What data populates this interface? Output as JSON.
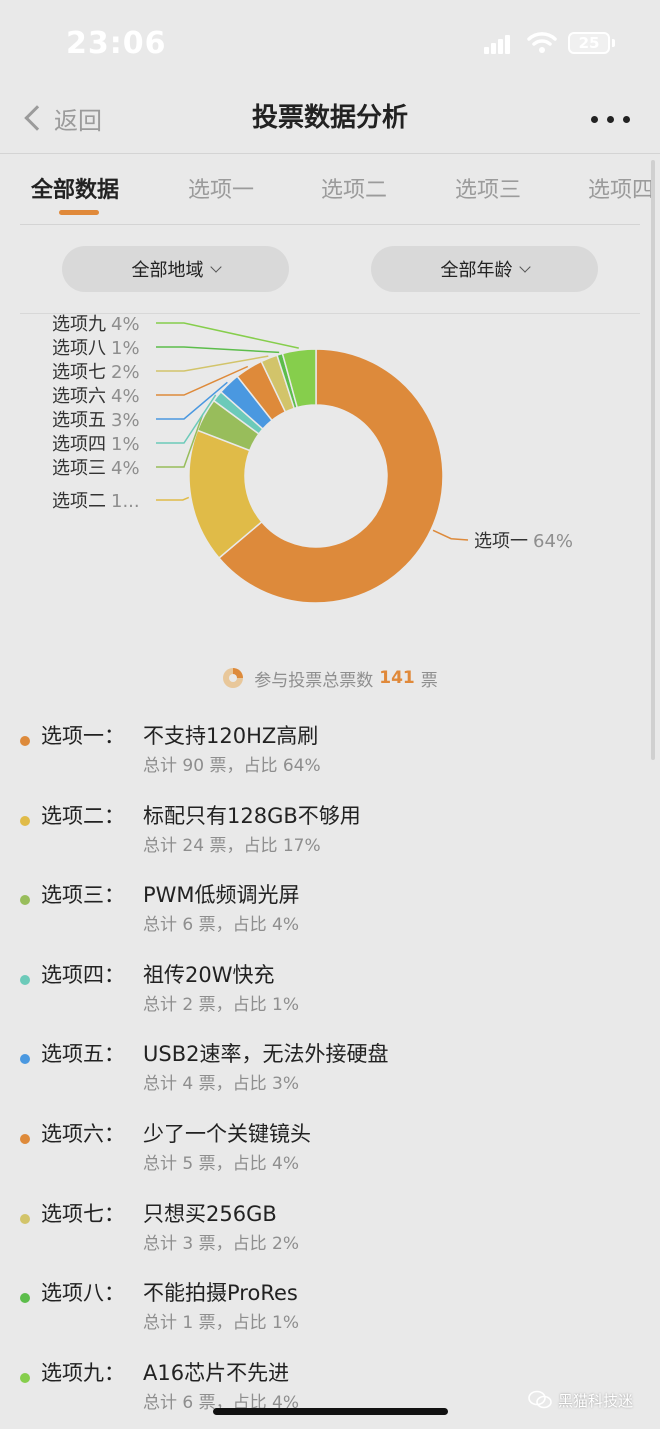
{
  "status_bar": {
    "time": "23:06",
    "battery": "25"
  },
  "nav": {
    "back_label": "返回",
    "title": "投票数据分析"
  },
  "tabs": [
    {
      "label": "全部数据",
      "active": true
    },
    {
      "label": "选项一",
      "active": false
    },
    {
      "label": "选项二",
      "active": false
    },
    {
      "label": "选项三",
      "active": false
    },
    {
      "label": "选项四",
      "active": false
    }
  ],
  "filters": {
    "region": "全部地域",
    "age": "全部年龄"
  },
  "chart_data": {
    "type": "pie",
    "donut": true,
    "categories": [
      "选项一",
      "选项二",
      "选项三",
      "选项四",
      "选项五",
      "选项六",
      "选项七",
      "选项八",
      "选项九"
    ],
    "values": [
      90,
      24,
      6,
      2,
      4,
      5,
      3,
      1,
      6
    ],
    "labels": [
      "选项一 64%",
      "选项二 1...",
      "选项三 4%",
      "选项四 1%",
      "选项五 3%",
      "选项六 4%",
      "选项七 2%",
      "选项八 1%",
      "选项九 4%"
    ],
    "colors": [
      "#dd8a3b",
      "#e0bb48",
      "#98bd5b",
      "#6ccab9",
      "#4a98e0",
      "#de8a3a",
      "#d2c46a",
      "#5cbd4b",
      "#86ce4c"
    ]
  },
  "total": {
    "prefix": "参与投票总票数",
    "count": "141",
    "suffix": "票"
  },
  "options": [
    {
      "label": "选项一：",
      "text": "不支持120HZ高刷",
      "stats": "总计 90 票，占比 64%",
      "color": "#dd8a3b"
    },
    {
      "label": "选项二：",
      "text": "标配只有128GB不够用",
      "stats": "总计 24 票，占比 17%",
      "color": "#e0bb48"
    },
    {
      "label": "选项三：",
      "text": "PWM低频调光屏",
      "stats": "总计 6 票，占比 4%",
      "color": "#98bd5b"
    },
    {
      "label": "选项四：",
      "text": "祖传20W快充",
      "stats": "总计 2 票，占比 1%",
      "color": "#6ccab9"
    },
    {
      "label": "选项五：",
      "text": "USB2速率，无法外接硬盘",
      "stats": "总计 4 票，占比 3%",
      "color": "#4a98e0"
    },
    {
      "label": "选项六：",
      "text": "少了一个关键镜头",
      "stats": "总计 5 票，占比 4%",
      "color": "#de8a3a"
    },
    {
      "label": "选项七：",
      "text": "只想买256GB",
      "stats": "总计 3 票，占比 2%",
      "color": "#d2c46a"
    },
    {
      "label": "选项八：",
      "text": "不能拍摄ProRes",
      "stats": "总计 1 票，占比 1%",
      "color": "#5cbd4b"
    },
    {
      "label": "选项九：",
      "text": "A16芯片不先进",
      "stats": "总计 6 票，占比 4%",
      "color": "#86ce4c"
    }
  ],
  "watermark": "黑猫科技迷"
}
